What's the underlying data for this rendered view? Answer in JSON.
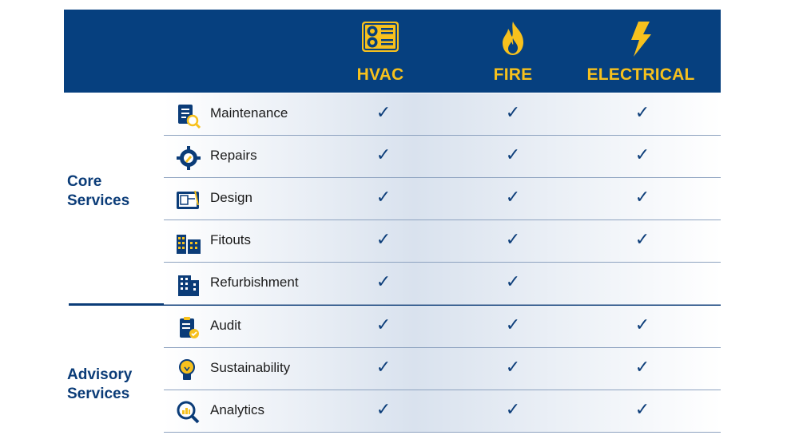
{
  "columns": [
    {
      "label": "HVAC",
      "icon": "hvac-unit-icon"
    },
    {
      "label": "FIRE",
      "icon": "flame-icon"
    },
    {
      "label": "ELECTRICAL",
      "icon": "lightning-bolt-icon"
    }
  ],
  "check_glyph": "✓",
  "colors": {
    "header_bg": "#06407f",
    "accent": "#f7c11d",
    "navy": "#0b3c78"
  },
  "groups": [
    {
      "label_line1": "Core",
      "label_line2": "Services",
      "rows": [
        {
          "label": "Maintenance",
          "icon": "checklist-magnifier-icon",
          "checks": [
            true,
            true,
            true
          ]
        },
        {
          "label": "Repairs",
          "icon": "gear-wrench-icon",
          "checks": [
            true,
            true,
            true
          ]
        },
        {
          "label": "Design",
          "icon": "blueprint-icon",
          "checks": [
            true,
            true,
            true
          ]
        },
        {
          "label": "Fitouts",
          "icon": "buildings-icon",
          "checks": [
            true,
            true,
            true
          ]
        },
        {
          "label": "Refurbishment",
          "icon": "tower-building-icon",
          "checks": [
            true,
            true,
            false
          ]
        }
      ]
    },
    {
      "label_line1": "Advisory",
      "label_line2": "Services",
      "rows": [
        {
          "label": "Audit",
          "icon": "clipboard-check-icon",
          "checks": [
            true,
            true,
            true
          ]
        },
        {
          "label": "Sustainability",
          "icon": "lightbulb-icon",
          "checks": [
            true,
            true,
            true
          ]
        },
        {
          "label": "Analytics",
          "icon": "magnifier-chart-icon",
          "checks": [
            true,
            true,
            true
          ]
        }
      ]
    }
  ]
}
